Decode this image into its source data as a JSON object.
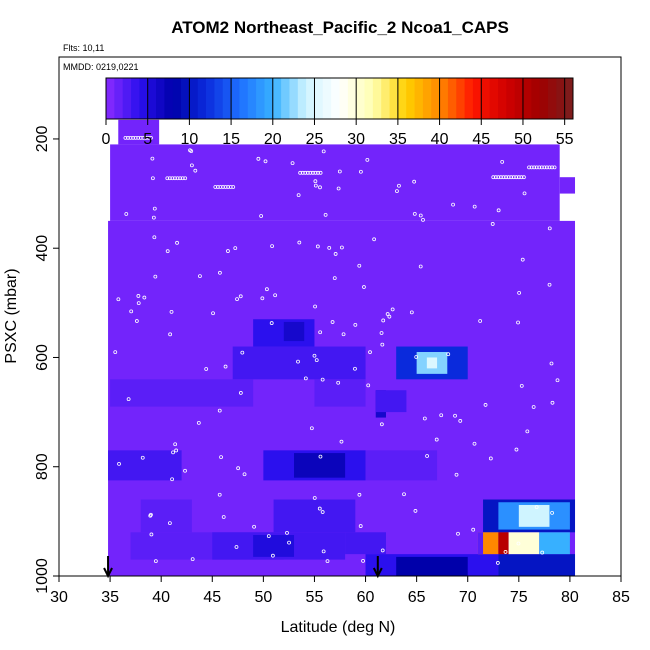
{
  "chart_data": {
    "type": "heatmap",
    "title": "ATOM2 Northeast_Pacific_2 Ncoa1_CAPS",
    "flts_label": "Flts: 10,11",
    "mmdd_label": "MMDD: 0219,0221",
    "xlabel": "Latitude (deg N)",
    "ylabel": "PSXC (mbar)",
    "xlim": [
      30,
      85
    ],
    "ylim": [
      1000,
      50
    ],
    "x_ticks": [
      "30",
      "35",
      "40",
      "45",
      "50",
      "55",
      "60",
      "65",
      "70",
      "75",
      "80",
      "85"
    ],
    "y_ticks": [
      "200",
      "400",
      "600",
      "800",
      "1000"
    ],
    "colorbar": {
      "range": [
        0,
        56
      ],
      "ticks": [
        "0",
        "5",
        "10",
        "15",
        "20",
        "25",
        "30",
        "35",
        "40",
        "45",
        "50",
        "55"
      ],
      "colors": [
        "#8b2bff",
        "#2b10ee",
        "#0000aa",
        "#0a2adc",
        "#1e6fff",
        "#37b0ff",
        "#cff4ff",
        "#ffffff",
        "#ffffb0",
        "#ffd000",
        "#ff8800",
        "#ff1600",
        "#d00000",
        "#a00000",
        "#7a1f1f"
      ]
    },
    "background_value": 1,
    "cells": [
      {
        "lat": [
          35.8,
          39.8
        ],
        "p": [
          165,
          210
        ],
        "value": 1
      },
      {
        "lat": [
          35,
          79
        ],
        "p": [
          210,
          350
        ],
        "value": 1
      },
      {
        "lat": [
          79,
          80.5
        ],
        "p": [
          270,
          300
        ],
        "value": 1
      },
      {
        "lat": [
          34.8,
          80.5
        ],
        "p": [
          350,
          1000
        ],
        "value": 1
      },
      {
        "lat": [
          49,
          55
        ],
        "p": [
          530,
          580
        ],
        "value": 4
      },
      {
        "lat": [
          52,
          54
        ],
        "p": [
          535,
          570
        ],
        "value": 6
      },
      {
        "lat": [
          47,
          60
        ],
        "p": [
          580,
          640
        ],
        "value": 3
      },
      {
        "lat": [
          63,
          70
        ],
        "p": [
          580,
          640
        ],
        "value": 12
      },
      {
        "lat": [
          65,
          68
        ],
        "p": [
          590,
          630
        ],
        "value": 22
      },
      {
        "lat": [
          66,
          67
        ],
        "p": [
          600,
          620
        ],
        "value": 25
      },
      {
        "lat": [
          35,
          49
        ],
        "p": [
          640,
          690
        ],
        "value": 2
      },
      {
        "lat": [
          55,
          60
        ],
        "p": [
          640,
          690
        ],
        "value": 2
      },
      {
        "lat": [
          61,
          62
        ],
        "p": [
          660,
          710
        ],
        "value": 6
      },
      {
        "lat": [
          61,
          64
        ],
        "p": [
          660,
          700
        ],
        "value": 3
      },
      {
        "lat": [
          34.8,
          42
        ],
        "p": [
          770,
          825
        ],
        "value": 3
      },
      {
        "lat": [
          50,
          60
        ],
        "p": [
          770,
          825
        ],
        "value": 4
      },
      {
        "lat": [
          53,
          58
        ],
        "p": [
          775,
          820
        ],
        "value": 7
      },
      {
        "lat": [
          60,
          67
        ],
        "p": [
          770,
          825
        ],
        "value": 2
      },
      {
        "lat": [
          38,
          43
        ],
        "p": [
          860,
          920
        ],
        "value": 2
      },
      {
        "lat": [
          51,
          59
        ],
        "p": [
          860,
          920
        ],
        "value": 3
      },
      {
        "lat": [
          37,
          52
        ],
        "p": [
          920,
          970
        ],
        "value": 2
      },
      {
        "lat": [
          45,
          58
        ],
        "p": [
          920,
          970
        ],
        "value": 3
      },
      {
        "lat": [
          49,
          53
        ],
        "p": [
          925,
          965
        ],
        "value": 5
      },
      {
        "lat": [
          58,
          62
        ],
        "p": [
          920,
          960
        ],
        "value": 3
      },
      {
        "lat": [
          60,
          73
        ],
        "p": [
          960,
          1000
        ],
        "value": 4
      },
      {
        "lat": [
          63,
          70
        ],
        "p": [
          965,
          1000
        ],
        "value": 8
      },
      {
        "lat": [
          73,
          80.5
        ],
        "p": [
          960,
          1000
        ],
        "value": 10
      },
      {
        "lat": [
          71.5,
          80.5
        ],
        "p": [
          860,
          920
        ],
        "value": 10
      },
      {
        "lat": [
          73,
          80
        ],
        "p": [
          865,
          915
        ],
        "value": 18
      },
      {
        "lat": [
          75,
          78
        ],
        "p": [
          870,
          910
        ],
        "value": 24
      },
      {
        "lat": [
          71,
          73
        ],
        "p": [
          920,
          960
        ],
        "value": 40
      },
      {
        "lat": [
          73,
          74
        ],
        "p": [
          920,
          960
        ],
        "value": 50
      },
      {
        "lat": [
          74,
          77
        ],
        "p": [
          920,
          960
        ],
        "value": 30
      },
      {
        "lat": [
          77,
          80
        ],
        "p": [
          920,
          960
        ],
        "value": 20
      },
      {
        "lat": [
          71,
          71.5
        ],
        "p": [
          920,
          960
        ],
        "value": 2
      }
    ],
    "arrows_lat": [
      34.8,
      61.2
    ]
  }
}
